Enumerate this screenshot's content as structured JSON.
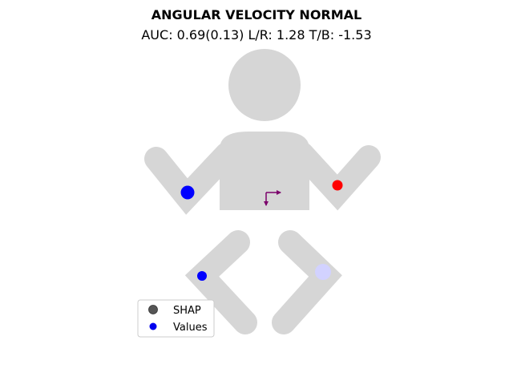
{
  "title": "ANGULAR VELOCITY NORMAL",
  "subtitle": "AUC: 0.69(0.13) L/R: 1.28 T/B: -1.53",
  "colors": {
    "body": "#d6d6d6",
    "arrow": "#7b006b",
    "legend_shap": "#555555",
    "legend_values": "#0000ee"
  },
  "legend": {
    "shap_label": "SHAP",
    "values_label": "Values"
  },
  "sensors": [
    {
      "name": "left-wrist",
      "color": "#0000ff"
    },
    {
      "name": "right-wrist",
      "color": "#ff0000"
    },
    {
      "name": "left-ankle",
      "color": "#0000ff"
    },
    {
      "name": "right-ankle",
      "color": "#d2d2ff"
    }
  ]
}
